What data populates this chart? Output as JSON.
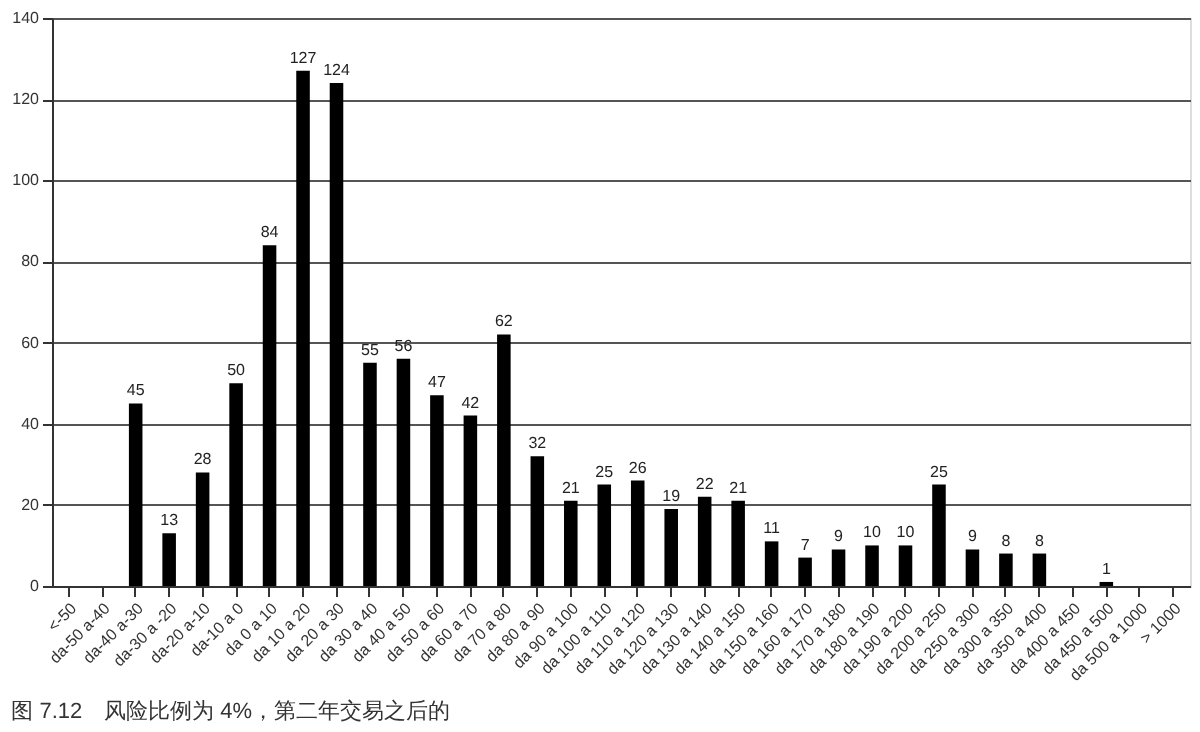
{
  "chart_data": {
    "type": "bar",
    "categories": [
      "<-50",
      "da-50 a-40",
      "da-40 a-30",
      "da-30 a -20",
      "da-20 a-10",
      "da-10 a 0",
      "da 0 a 10",
      "da 10 a 20",
      "da 20 a 30",
      "da 30 a 40",
      "da 40 a 50",
      "da 50 a 60",
      "da 60 a 70",
      "da 70 a 80",
      "da 80 a 90",
      "da 90 a 100",
      "da 100 a 110",
      "da 110 a 120",
      "da 120 a 130",
      "da 130 a 140",
      "da 140 a 150",
      "da 150 a 160",
      "da 160 a 170",
      "da 170 a 180",
      "da 180 a 190",
      "da 190 a 200",
      "da 200 a 250",
      "da 250 a 300",
      "da 300 a 350",
      "da 350 a 400",
      "da 400 a 450",
      "da 450 a 500",
      "da 500 a 1000",
      "> 1000"
    ],
    "values": [
      0,
      0,
      45,
      13,
      28,
      50,
      84,
      127,
      124,
      55,
      56,
      47,
      42,
      62,
      32,
      21,
      25,
      26,
      19,
      22,
      21,
      11,
      7,
      9,
      10,
      10,
      25,
      9,
      8,
      8,
      0,
      1,
      0,
      0
    ],
    "value_labels": [
      null,
      null,
      "45",
      "13",
      "28",
      "50",
      "84",
      "127",
      "124",
      "55",
      "56",
      "47",
      "42",
      "62",
      "32",
      "21",
      "25",
      "26",
      "19",
      "22",
      "21",
      "11",
      "7",
      "9",
      "10",
      "10",
      "25",
      "9",
      "8",
      "8",
      null,
      "1",
      null,
      null
    ],
    "color": "#000000",
    "ylim": [
      0,
      140
    ],
    "yticks": [
      0,
      20,
      40,
      60,
      80,
      100,
      120,
      140
    ],
    "grid": "y",
    "annotations": [
      "图 7.12　风险比例为 4%，第二年交易之后的"
    ]
  }
}
